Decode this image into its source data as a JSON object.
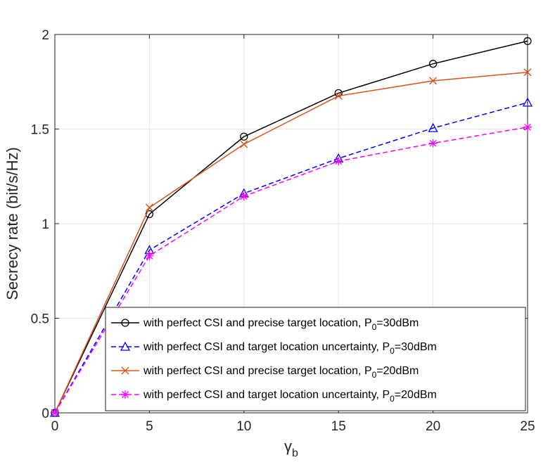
{
  "chart_data": {
    "type": "line",
    "title": "",
    "xlabel_symbol": "γ",
    "xlabel_subscript": "b",
    "ylabel": "Secrecy rate (bit/s/Hz)",
    "xlim": [
      0,
      25
    ],
    "ylim": [
      0,
      2
    ],
    "grid": true,
    "x_ticks": [
      0,
      5,
      10,
      15,
      20,
      25
    ],
    "x_tick_labels": [
      "0",
      "5",
      "10",
      "15",
      "20",
      "25"
    ],
    "y_ticks": [
      0,
      0.5,
      1,
      1.5,
      2
    ],
    "y_tick_labels": [
      "0",
      "0.5",
      "1",
      "1.5",
      "2"
    ],
    "legend_position": "bottom-right",
    "x": [
      0,
      5,
      10,
      15,
      20,
      25
    ],
    "series": [
      {
        "name_prefix": "with perfect CSI and precise target location, P",
        "name_sub": "0",
        "name_suffix": "=30dBm",
        "values": [
          0.0,
          1.05,
          1.46,
          1.69,
          1.845,
          1.965
        ],
        "color": "#000000",
        "dash": "solid",
        "marker": "circle"
      },
      {
        "name_prefix": "with perfect CSI and target location uncertainty, P",
        "name_sub": "0",
        "name_suffix": "=30dBm",
        "values": [
          0.0,
          0.86,
          1.16,
          1.345,
          1.505,
          1.64
        ],
        "color": "#0000ff",
        "dash": "dashed",
        "marker": "triangle"
      },
      {
        "name_prefix": "with perfect CSI and precise target location, P",
        "name_sub": "0",
        "name_suffix": "=20dBm",
        "values": [
          0.0,
          1.085,
          1.42,
          1.675,
          1.755,
          1.8
        ],
        "color": "#d95319",
        "dash": "solid",
        "marker": "x"
      },
      {
        "name_prefix": "with perfect CSI and target location uncertainty, P",
        "name_sub": "0",
        "name_suffix": "=20dBm",
        "values": [
          0.0,
          0.83,
          1.145,
          1.33,
          1.425,
          1.51
        ],
        "color": "#ff00ff",
        "dash": "dashed",
        "marker": "asterisk"
      }
    ]
  }
}
